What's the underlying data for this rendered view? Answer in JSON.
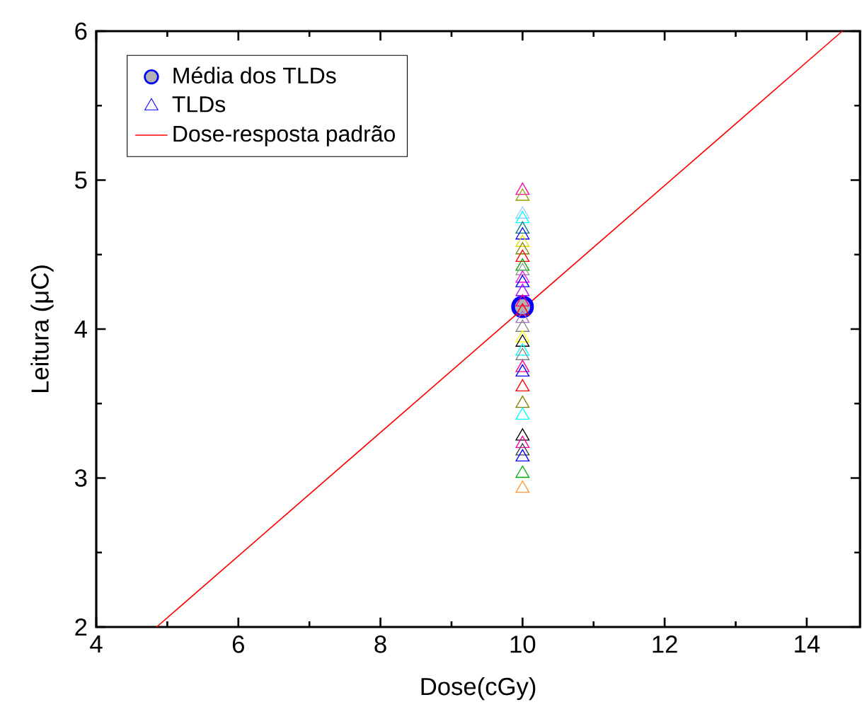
{
  "chart_data": {
    "type": "scatter",
    "xlabel": "Dose(cGy)",
    "ylabel": "Leitura (μC)",
    "xlim": [
      4,
      14.75
    ],
    "ylim": [
      2,
      6
    ],
    "xticks": [
      4,
      6,
      8,
      10,
      12,
      14
    ],
    "yticks": [
      2,
      3,
      4,
      5,
      6
    ],
    "legend": "top left",
    "grid": false,
    "series": [
      {
        "name": "Média dos TLDs",
        "marker": "circle",
        "color": "#0000ff",
        "x": [
          10
        ],
        "values": [
          4.15
        ]
      },
      {
        "name": "TLDs",
        "marker": "triangle",
        "color": "#0000ff",
        "x": [
          10,
          10,
          10,
          10,
          10,
          10,
          10,
          10,
          10,
          10,
          10,
          10,
          10,
          10,
          10,
          10,
          10,
          10,
          10,
          10,
          10,
          10,
          10,
          10,
          10,
          10,
          10,
          10,
          10,
          10,
          10,
          10,
          10
        ],
        "values": [
          4.93,
          4.89,
          4.77,
          4.74,
          4.67,
          4.63,
          4.58,
          4.53,
          4.48,
          4.42,
          4.39,
          4.34,
          4.31,
          4.25,
          4.18,
          4.12,
          4.07,
          4.01,
          3.94,
          3.91,
          3.85,
          3.82,
          3.74,
          3.71,
          3.61,
          3.5,
          3.42,
          3.28,
          3.23,
          3.18,
          3.14,
          3.03,
          2.93
        ],
        "colors": [
          "#ff00aa",
          "#999900",
          "#99ccff",
          "#00ffff",
          "#008080",
          "#0000ff",
          "#e0e000",
          "#808000",
          "#ff0000",
          "#00aa00",
          "#999999",
          "#ff00ff",
          "#0000ff",
          "#aa00ff",
          "#ff0080",
          "#ff0000",
          "#aa66cc",
          "#808080",
          "#ffff00",
          "#000000",
          "#00ffff",
          "#808080",
          "#ff0080",
          "#0000ff",
          "#ff0000",
          "#808000",
          "#00ffff",
          "#000000",
          "#ff00aa",
          "#404040",
          "#0000ff",
          "#00aa00",
          "#ff9933"
        ]
      },
      {
        "name": "Dose-resposta padrão",
        "type": "line",
        "line_style": "solid",
        "marker": "none",
        "color": "#ff0000",
        "x": [
          4.85,
          14.5
        ],
        "values": [
          2,
          6
        ]
      }
    ]
  }
}
